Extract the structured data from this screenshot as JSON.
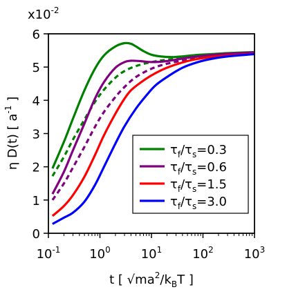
{
  "chart_data": {
    "type": "line",
    "x_scale": "log",
    "xlim": [
      0.1,
      1000
    ],
    "ylim": [
      0,
      6
    ],
    "y_multiplier_label": {
      "base": "x10",
      "exp": "-2"
    },
    "xlabel": {
      "prefix": "t [ ",
      "root": "√",
      "core": "ma",
      "sup2": "2",
      "slash": "/k",
      "sub": "B",
      "tail": "T ]"
    },
    "ylabel": {
      "prefix": "η D(t) [ a",
      "sup": "-1",
      "tail": " ]"
    },
    "x_ticks": [
      {
        "value": 0.1,
        "base": "10",
        "exp": "-1"
      },
      {
        "value": 1,
        "base": "10",
        "exp": "0"
      },
      {
        "value": 10,
        "base": "10",
        "exp": "1"
      },
      {
        "value": 100,
        "base": "10",
        "exp": "2"
      },
      {
        "value": 1000,
        "base": "10",
        "exp": "3"
      }
    ],
    "y_ticks": [
      {
        "value": 0,
        "label": "0"
      },
      {
        "value": 1,
        "label": "1"
      },
      {
        "value": 2,
        "label": "2"
      },
      {
        "value": 3,
        "label": "3"
      },
      {
        "value": 4,
        "label": "4"
      },
      {
        "value": 5,
        "label": "5"
      },
      {
        "value": 6,
        "label": "6"
      }
    ],
    "legend_placement": "lower-right",
    "series": [
      {
        "id": "r03",
        "legend": {
          "tau": "τ",
          "f": "f",
          "slash": "/",
          "s": "s",
          "value": "=0.3"
        },
        "color": "#008000",
        "dash": "solid",
        "in_legend": true,
        "points": [
          [
            0.12,
            1.95
          ],
          [
            0.2,
            2.75
          ],
          [
            0.3,
            3.45
          ],
          [
            0.5,
            4.3
          ],
          [
            0.8,
            4.95
          ],
          [
            1.2,
            5.35
          ],
          [
            2,
            5.62
          ],
          [
            3,
            5.72
          ],
          [
            4,
            5.7
          ],
          [
            5,
            5.62
          ],
          [
            7,
            5.48
          ],
          [
            10,
            5.37
          ],
          [
            15,
            5.32
          ],
          [
            25,
            5.3
          ],
          [
            40,
            5.32
          ],
          [
            70,
            5.36
          ],
          [
            150,
            5.39
          ],
          [
            300,
            5.42
          ],
          [
            1000,
            5.45
          ]
        ]
      },
      {
        "id": "r03d",
        "color": "#008000",
        "dash": "dashed",
        "in_legend": false,
        "points": [
          [
            0.12,
            1.72
          ],
          [
            0.2,
            2.3
          ],
          [
            0.3,
            2.82
          ],
          [
            0.5,
            3.42
          ],
          [
            0.8,
            3.95
          ],
          [
            1.2,
            4.32
          ],
          [
            2,
            4.68
          ],
          [
            3,
            4.88
          ],
          [
            5,
            5.03
          ],
          [
            10,
            5.15
          ],
          [
            20,
            5.22
          ],
          [
            50,
            5.28
          ],
          [
            100,
            5.33
          ],
          [
            300,
            5.39
          ],
          [
            1000,
            5.44
          ]
        ]
      },
      {
        "id": "r06",
        "legend": {
          "tau": "τ",
          "f": "f",
          "slash": "/",
          "s": "s",
          "value": "=0.6"
        },
        "color": "#800080",
        "dash": "solid",
        "in_legend": true,
        "points": [
          [
            0.12,
            1.18
          ],
          [
            0.2,
            1.85
          ],
          [
            0.3,
            2.5
          ],
          [
            0.5,
            3.3
          ],
          [
            0.8,
            4.05
          ],
          [
            1.2,
            4.55
          ],
          [
            2,
            4.98
          ],
          [
            3,
            5.15
          ],
          [
            4,
            5.19
          ],
          [
            6,
            5.18
          ],
          [
            10,
            5.15
          ],
          [
            20,
            5.18
          ],
          [
            50,
            5.28
          ],
          [
            100,
            5.34
          ],
          [
            300,
            5.4
          ],
          [
            1000,
            5.44
          ]
        ]
      },
      {
        "id": "r06d",
        "color": "#800080",
        "dash": "dashed",
        "in_legend": false,
        "points": [
          [
            0.12,
            1.0
          ],
          [
            0.2,
            1.5
          ],
          [
            0.3,
            1.98
          ],
          [
            0.5,
            2.6
          ],
          [
            0.8,
            3.2
          ],
          [
            1.2,
            3.65
          ],
          [
            2,
            4.1
          ],
          [
            3,
            4.4
          ],
          [
            5,
            4.7
          ],
          [
            10,
            4.95
          ],
          [
            20,
            5.1
          ],
          [
            50,
            5.22
          ],
          [
            100,
            5.3
          ],
          [
            300,
            5.37
          ],
          [
            1000,
            5.42
          ]
        ]
      },
      {
        "id": "r15",
        "legend": {
          "tau": "τ",
          "f": "f",
          "slash": "/",
          "s": "s",
          "value": "=1.5"
        },
        "color": "#ff0000",
        "dash": "solid",
        "in_legend": true,
        "points": [
          [
            0.12,
            0.52
          ],
          [
            0.2,
            0.82
          ],
          [
            0.3,
            1.15
          ],
          [
            0.5,
            1.7
          ],
          [
            0.8,
            2.35
          ],
          [
            1.2,
            2.95
          ],
          [
            2,
            3.6
          ],
          [
            3,
            4.05
          ],
          [
            4,
            4.3
          ],
          [
            6,
            4.52
          ],
          [
            10,
            4.75
          ],
          [
            20,
            4.98
          ],
          [
            50,
            5.18
          ],
          [
            100,
            5.27
          ],
          [
            300,
            5.35
          ],
          [
            1000,
            5.4
          ]
        ]
      },
      {
        "id": "r30",
        "legend": {
          "tau": "τ",
          "f": "f",
          "slash": "/",
          "s": "s",
          "value": "=3.0"
        },
        "color": "#0000ff",
        "dash": "solid",
        "in_legend": true,
        "points": [
          [
            0.12,
            0.28
          ],
          [
            0.2,
            0.47
          ],
          [
            0.3,
            0.62
          ],
          [
            0.5,
            0.95
          ],
          [
            0.8,
            1.45
          ],
          [
            1.2,
            2.0
          ],
          [
            2,
            2.7
          ],
          [
            3,
            3.22
          ],
          [
            5,
            3.75
          ],
          [
            8,
            4.15
          ],
          [
            12,
            4.45
          ],
          [
            20,
            4.7
          ],
          [
            40,
            4.98
          ],
          [
            80,
            5.15
          ],
          [
            150,
            5.25
          ],
          [
            300,
            5.32
          ],
          [
            1000,
            5.39
          ]
        ]
      }
    ]
  }
}
